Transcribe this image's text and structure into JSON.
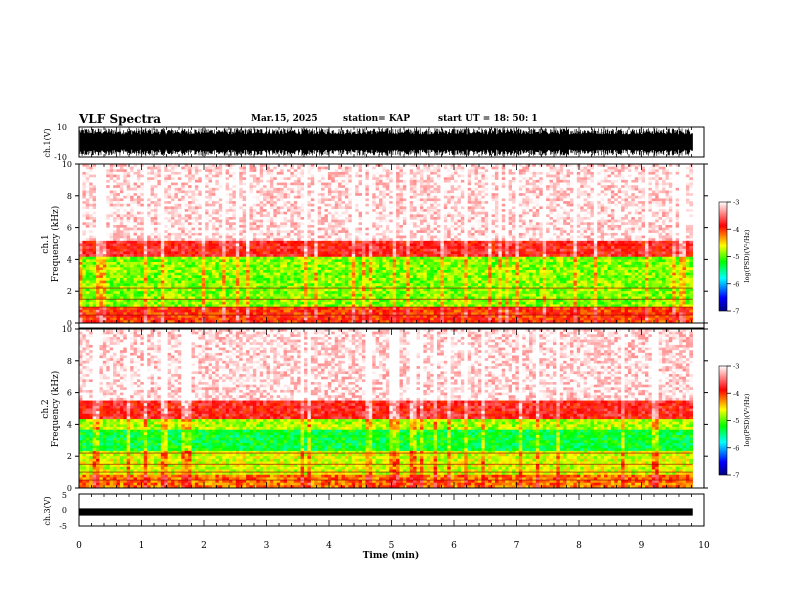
{
  "header": {
    "title": "VLF Spectra",
    "date": "Mar.15, 2025",
    "station": "station= KAP",
    "start_ut": "start  UT  =   18: 50: 1"
  },
  "chart_data": [
    {
      "type": "line",
      "panel": "ch1-waveform",
      "ylabel": "ch.1(V)",
      "ylim": [
        -10,
        10
      ],
      "ytick_labels": [
        "10",
        "-10"
      ],
      "xlim": [
        0,
        10
      ],
      "description_values": {
        "min": -10,
        "max": 10,
        "style": "dense oscillation filling most of range"
      }
    },
    {
      "type": "heatmap",
      "panel": "ch1-spectrogram",
      "ylabel_line1": "ch.1",
      "ylabel_line2": "Frequency  (kHz)",
      "ylim": [
        0,
        10
      ],
      "ytick_labels": [
        "0",
        "2",
        "4",
        "6",
        "8",
        "10"
      ],
      "xlim": [
        0,
        10
      ],
      "data_end_min": 9.82,
      "colorbar": {
        "label": "log(PSD)(V²/Hz)",
        "range": [
          -7,
          -3
        ],
        "tick_labels": [
          "-3",
          "-4",
          "-5",
          "-6",
          "-7"
        ]
      },
      "bands": [
        {
          "from_khz": 0,
          "to_khz": 1.0,
          "level": -4.0
        },
        {
          "from_khz": 1.0,
          "to_khz": 4.2,
          "level": -4.9
        },
        {
          "from_khz": 4.2,
          "to_khz": 5.2,
          "level": -3.8
        },
        {
          "from_khz": 5.2,
          "to_khz": 10,
          "level": -3.1
        }
      ]
    },
    {
      "type": "heatmap",
      "panel": "ch2-spectrogram",
      "ylabel_line1": "ch.2",
      "ylabel_line2": "Frequency  (kHz)",
      "ylim": [
        0,
        10
      ],
      "ytick_labels": [
        "0",
        "2",
        "4",
        "6",
        "8",
        "10"
      ],
      "xlim": [
        0,
        10
      ],
      "data_end_min": 9.82,
      "colorbar": {
        "label": "log(PSD)(V²/Hz)",
        "range": [
          -7,
          -3
        ],
        "tick_labels": [
          "-3",
          "-4",
          "-5",
          "-6",
          "-7"
        ]
      },
      "bands": [
        {
          "from_khz": 0,
          "to_khz": 0.8,
          "level": -4.2
        },
        {
          "from_khz": 0.8,
          "to_khz": 2.4,
          "level": -4.7
        },
        {
          "from_khz": 2.4,
          "to_khz": 3.6,
          "level": -5.3
        },
        {
          "from_khz": 3.6,
          "to_khz": 4.3,
          "level": -4.8
        },
        {
          "from_khz": 4.3,
          "to_khz": 5.5,
          "level": -3.8
        },
        {
          "from_khz": 5.5,
          "to_khz": 10,
          "level": -3.1
        }
      ]
    },
    {
      "type": "line",
      "panel": "ch3-waveform",
      "ylabel": "ch.3(V)",
      "ylim": [
        -5,
        5
      ],
      "ytick_labels": [
        "5",
        "0",
        "-5"
      ],
      "xlim": [
        0,
        10
      ],
      "description_values": {
        "min": -0.5,
        "max": 0.5,
        "style": "thin band near zero"
      }
    }
  ],
  "xaxis": {
    "label": "Time  (min)",
    "tick_labels": [
      "0",
      "1",
      "2",
      "3",
      "4",
      "5",
      "6",
      "7",
      "8",
      "9",
      "10"
    ]
  },
  "colors": {
    "ink": "#000000",
    "colormap": [
      "#000080",
      "#0000ff",
      "#00ffff",
      "#00ff00",
      "#ffff00",
      "#ff0000",
      "#ffffff"
    ]
  }
}
